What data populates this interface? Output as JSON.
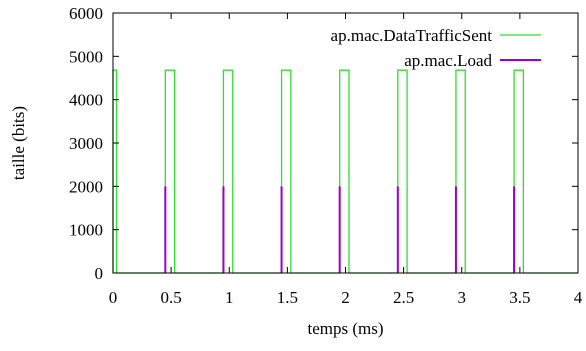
{
  "chart_data": {
    "type": "line",
    "xlabel": "temps (ms)",
    "ylabel": "taille (bits)",
    "xlim": [
      0,
      4
    ],
    "ylim": [
      0,
      6000
    ],
    "xticks": [
      0,
      0.5,
      1,
      1.5,
      2,
      2.5,
      3,
      3.5,
      4
    ],
    "xtick_labels": [
      "0",
      "0.5",
      "1",
      "1.5",
      "2",
      "2.5",
      "3",
      "3.5",
      "4"
    ],
    "yticks": [
      0,
      1000,
      2000,
      3000,
      4000,
      5000,
      6000
    ],
    "ytick_labels": [
      "0",
      "1000",
      "2000",
      "3000",
      "4000",
      "5000",
      "6000"
    ],
    "grid": false,
    "legend_position": "top-right",
    "series": [
      {
        "name": "ap.mac.DataTrafficSent",
        "color": "#33dd33",
        "step": true,
        "x": [
          0,
          0,
          0.03,
          0.03,
          0.45,
          0.45,
          0.53,
          0.53,
          0.95,
          0.95,
          1.03,
          1.03,
          1.45,
          1.45,
          1.53,
          1.53,
          1.95,
          1.95,
          2.03,
          2.03,
          2.45,
          2.45,
          2.53,
          2.53,
          2.95,
          2.95,
          3.03,
          3.03,
          3.45,
          3.45,
          3.53,
          3.53,
          4
        ],
        "y": [
          0,
          4680,
          4680,
          0,
          0,
          4680,
          4680,
          0,
          0,
          4680,
          4680,
          0,
          0,
          4680,
          4680,
          0,
          0,
          4680,
          4680,
          0,
          0,
          4680,
          4680,
          0,
          0,
          4680,
          4680,
          0,
          0,
          4680,
          4680,
          0,
          0
        ]
      },
      {
        "name": "ap.mac.Load",
        "color": "#9900cc",
        "spikes": true,
        "x": [
          0.45,
          0.95,
          1.45,
          1.95,
          2.45,
          2.95,
          3.45
        ],
        "y": [
          2000,
          2000,
          2000,
          2000,
          2000,
          2000,
          2000
        ]
      }
    ]
  }
}
